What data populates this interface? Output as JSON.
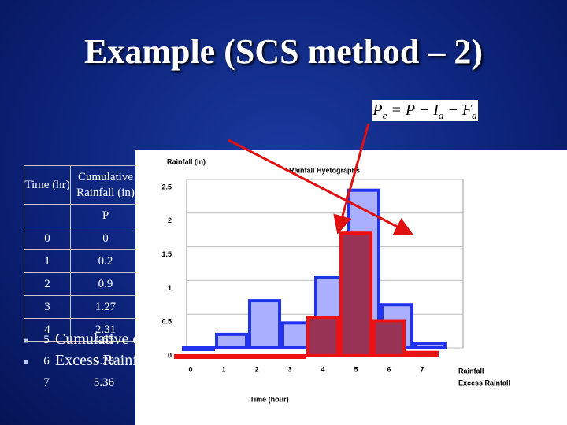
{
  "title": "Example (SCS method – 2)",
  "formula": [
    "P",
    "e",
    " = P − I",
    "a",
    " − F",
    "a"
  ],
  "table": {
    "header": [
      "Time (hr)",
      "Cumulative Rainfall (in)"
    ],
    "symbol": "P",
    "rows": [
      [
        0,
        0
      ],
      [
        1,
        0.2
      ],
      [
        2,
        0.9
      ],
      [
        3,
        1.27
      ],
      [
        4,
        2.31
      ]
    ],
    "lower_rows": [
      [
        5,
        4.65
      ],
      [
        6,
        5.29
      ],
      [
        7,
        5.36
      ]
    ]
  },
  "bullets": [
    "Cumulative e",
    "Excess Rainf"
  ],
  "chart_data": {
    "type": "bar",
    "title": "Rainfall Hyetographs",
    "y_label": "Rainfall (in)",
    "x_label": "Time (hour)",
    "categories": [
      0,
      1,
      2,
      3,
      4,
      5,
      6,
      7
    ],
    "series": [
      {
        "name": "Rainfall",
        "color": "#aab0ff",
        "values": [
          0,
          0.2,
          0.7,
          0.37,
          1.04,
          2.34,
          0.64,
          0.07
        ]
      },
      {
        "name": "Excess Rainfall",
        "color": "#993355",
        "values": [
          0,
          0,
          0,
          0,
          0.57,
          1.82,
          0.52,
          0.05
        ]
      }
    ],
    "ylim": [
      0,
      2.5
    ],
    "yticks": [
      0,
      0.5,
      1,
      1.5,
      2,
      2.5
    ]
  }
}
